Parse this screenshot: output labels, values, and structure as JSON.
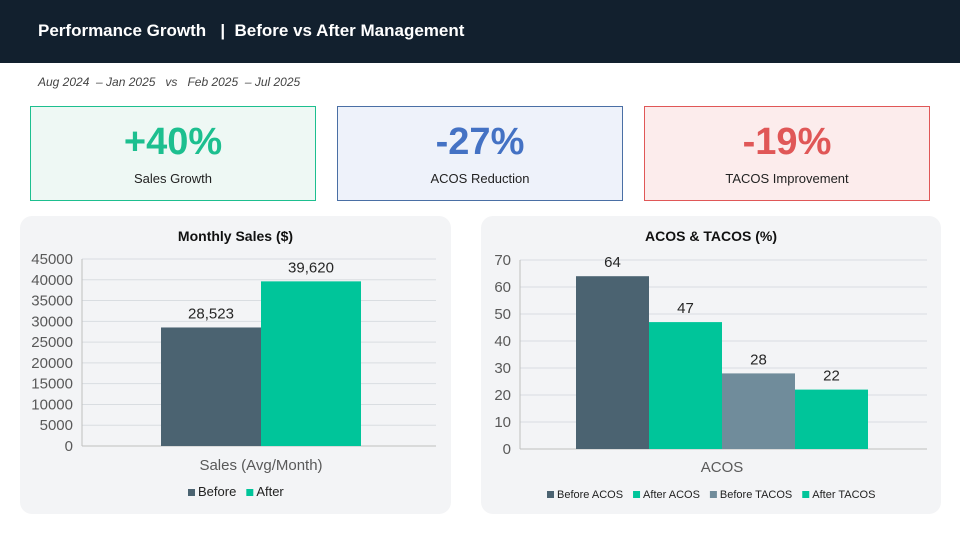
{
  "header": {
    "title": "Performance Growth   |  Before vs After Management"
  },
  "period": "Aug 2024  – Jan 2025   vs   Feb 2025  – Jul 2025",
  "kpis": [
    {
      "value": "+40%",
      "label": "Sales Growth",
      "color": "#1dbf8f",
      "bg": "#eef8f4",
      "border": "#1dbf8f"
    },
    {
      "value": "-27%",
      "label": "ACOS Reduction",
      "color": "#4472c4",
      "bg": "#eef2fa",
      "border": "#4a6fa5"
    },
    {
      "value": "-19%",
      "label": "TACOS Improvement",
      "color": "#e05757",
      "bg": "#fcecec",
      "border": "#e05757"
    }
  ],
  "chart_data": [
    {
      "type": "bar",
      "title": "Monthly Sales ($)",
      "categories": [
        "Sales (Avg/Month)"
      ],
      "series": [
        {
          "name": "Before",
          "values": [
            28523
          ],
          "labels": [
            "28,523"
          ],
          "color": "#4b6371"
        },
        {
          "name": "After",
          "values": [
            39620
          ],
          "labels": [
            "39,620"
          ],
          "color": "#00c59a"
        }
      ],
      "ylim": [
        0,
        45000
      ],
      "yticks": [
        0,
        5000,
        10000,
        15000,
        20000,
        25000,
        30000,
        35000,
        40000,
        45000
      ],
      "grid": true,
      "legend": "bottom"
    },
    {
      "type": "bar",
      "title": "ACOS & TACOS (%)",
      "categories": [
        "ACOS"
      ],
      "series": [
        {
          "name": "Before ACOS",
          "values": [
            64
          ],
          "labels": [
            "64"
          ],
          "color": "#4b6371"
        },
        {
          "name": "After ACOS",
          "values": [
            47
          ],
          "labels": [
            "47"
          ],
          "color": "#00c59a"
        },
        {
          "name": "Before TACOS",
          "values": [
            28
          ],
          "labels": [
            "28"
          ],
          "color": "#708c9b"
        },
        {
          "name": "After TACOS",
          "values": [
            22
          ],
          "labels": [
            "22"
          ],
          "color": "#00c59a"
        }
      ],
      "ylim": [
        0,
        70
      ],
      "yticks": [
        0,
        10,
        20,
        30,
        40,
        50,
        60,
        70
      ],
      "grid": true,
      "legend": "bottom"
    }
  ]
}
